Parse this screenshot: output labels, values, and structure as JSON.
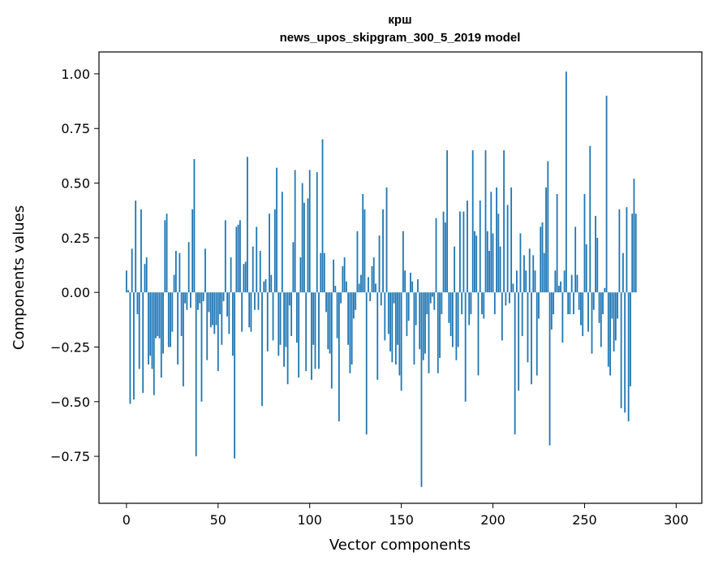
{
  "chart_data": {
    "type": "bar",
    "title": "крш",
    "subtitle": "news_upos_skipgram_300_5_2019 model",
    "xlabel": "Vector components",
    "ylabel": "Components values",
    "xlim": [
      -15,
      314
    ],
    "ylim": [
      -0.965,
      1.1
    ],
    "xticks": [
      0,
      50,
      100,
      150,
      200,
      250,
      300
    ],
    "yticks": [
      -0.75,
      -0.5,
      -0.25,
      0.0,
      0.25,
      0.5,
      0.75,
      1.0
    ],
    "ytick_labels": [
      "−0.75",
      "−0.50",
      "−0.25",
      "0.00",
      "0.25",
      "0.50",
      "0.75",
      "1.00"
    ],
    "grid": false,
    "bar_color": "#1f77b4",
    "values": [
      0.1,
      0.01,
      -0.51,
      0.2,
      -0.49,
      0.42,
      -0.1,
      -0.35,
      0.38,
      -0.46,
      0.13,
      0.16,
      -0.33,
      -0.29,
      -0.35,
      -0.47,
      -0.21,
      -0.2,
      -0.21,
      -0.39,
      -0.28,
      0.33,
      0.36,
      -0.25,
      -0.25,
      -0.18,
      0.08,
      0.19,
      -0.33,
      0.18,
      -0.2,
      -0.43,
      -0.05,
      -0.08,
      0.23,
      -0.07,
      0.38,
      0.61,
      -0.75,
      -0.08,
      -0.05,
      -0.5,
      -0.04,
      0.2,
      -0.31,
      -0.09,
      -0.16,
      -0.15,
      -0.19,
      -0.15,
      -0.36,
      -0.1,
      -0.24,
      -0.04,
      0.33,
      -0.11,
      -0.19,
      0.16,
      -0.29,
      -0.76,
      0.3,
      0.31,
      0.33,
      -0.18,
      0.13,
      0.14,
      0.62,
      -0.16,
      -0.18,
      0.21,
      -0.08,
      0.3,
      -0.08,
      0.19,
      -0.52,
      0.05,
      0.06,
      -0.27,
      0.36,
      0.08,
      -0.22,
      0.38,
      0.57,
      -0.29,
      -0.24,
      0.46,
      -0.34,
      -0.25,
      -0.42,
      -0.06,
      -0.2,
      0.23,
      0.56,
      -0.23,
      -0.39,
      0.16,
      0.5,
      0.41,
      -0.36,
      0.43,
      0.56,
      -0.4,
      -0.24,
      -0.35,
      0.55,
      -0.35,
      0.18,
      0.7,
      0.18,
      -0.09,
      -0.26,
      -0.28,
      -0.44,
      0.15,
      0.03,
      -0.21,
      -0.59,
      -0.05,
      0.12,
      0.16,
      0.05,
      -0.24,
      -0.37,
      -0.33,
      -0.12,
      -0.08,
      0.28,
      0.04,
      0.08,
      0.45,
      0.38,
      -0.65,
      0.07,
      -0.04,
      0.12,
      0.16,
      0.04,
      -0.4,
      0.26,
      -0.06,
      0.38,
      -0.22,
      0.48,
      -0.19,
      -0.27,
      -0.32,
      -0.05,
      -0.33,
      -0.24,
      -0.38,
      -0.45,
      0.28,
      0.1,
      -0.2,
      -0.13,
      0.09,
      0.05,
      -0.33,
      -0.15,
      0.06,
      -0.26,
      -0.89,
      -0.31,
      -0.28,
      -0.1,
      -0.37,
      -0.05,
      -0.02,
      -0.08,
      0.34,
      -0.37,
      -0.3,
      -0.1,
      0.37,
      0.32,
      0.65,
      -0.14,
      -0.2,
      -0.25,
      0.21,
      -0.31,
      -0.25,
      0.37,
      -0.1,
      0.37,
      -0.5,
      0.42,
      -0.15,
      -0.1,
      0.65,
      0.28,
      0.26,
      -0.38,
      0.42,
      -0.1,
      -0.12,
      0.65,
      0.28,
      0.19,
      0.46,
      0.27,
      -0.1,
      0.48,
      0.36,
      0.21,
      -0.22,
      0.65,
      -0.06,
      0.4,
      -0.05,
      0.48,
      0.04,
      -0.65,
      0.1,
      -0.45,
      0.27,
      -0.2,
      0.17,
      0.1,
      -0.32,
      0.2,
      -0.42,
      0.17,
      0.1,
      -0.38,
      -0.12,
      0.3,
      0.32,
      0.18,
      0.48,
      0.6,
      -0.7,
      -0.17,
      -0.1,
      0.1,
      0.45,
      0.03,
      0.05,
      -0.23,
      0.1,
      1.01,
      -0.1,
      -0.1,
      0.08,
      -0.1,
      0.3,
      0.08,
      -0.08,
      -0.15,
      -0.2,
      0.45,
      0.22,
      -0.18,
      0.67,
      -0.28,
      -0.08,
      0.35,
      0.25,
      -0.14,
      -0.25,
      -0.1,
      0.02,
      0.9,
      -0.34,
      -0.38,
      -0.12,
      -0.27,
      -0.22,
      -0.12,
      0.38,
      -0.53,
      0.18,
      -0.55,
      0.39,
      -0.59,
      -0.43,
      0.36,
      0.52,
      0.36
    ]
  }
}
